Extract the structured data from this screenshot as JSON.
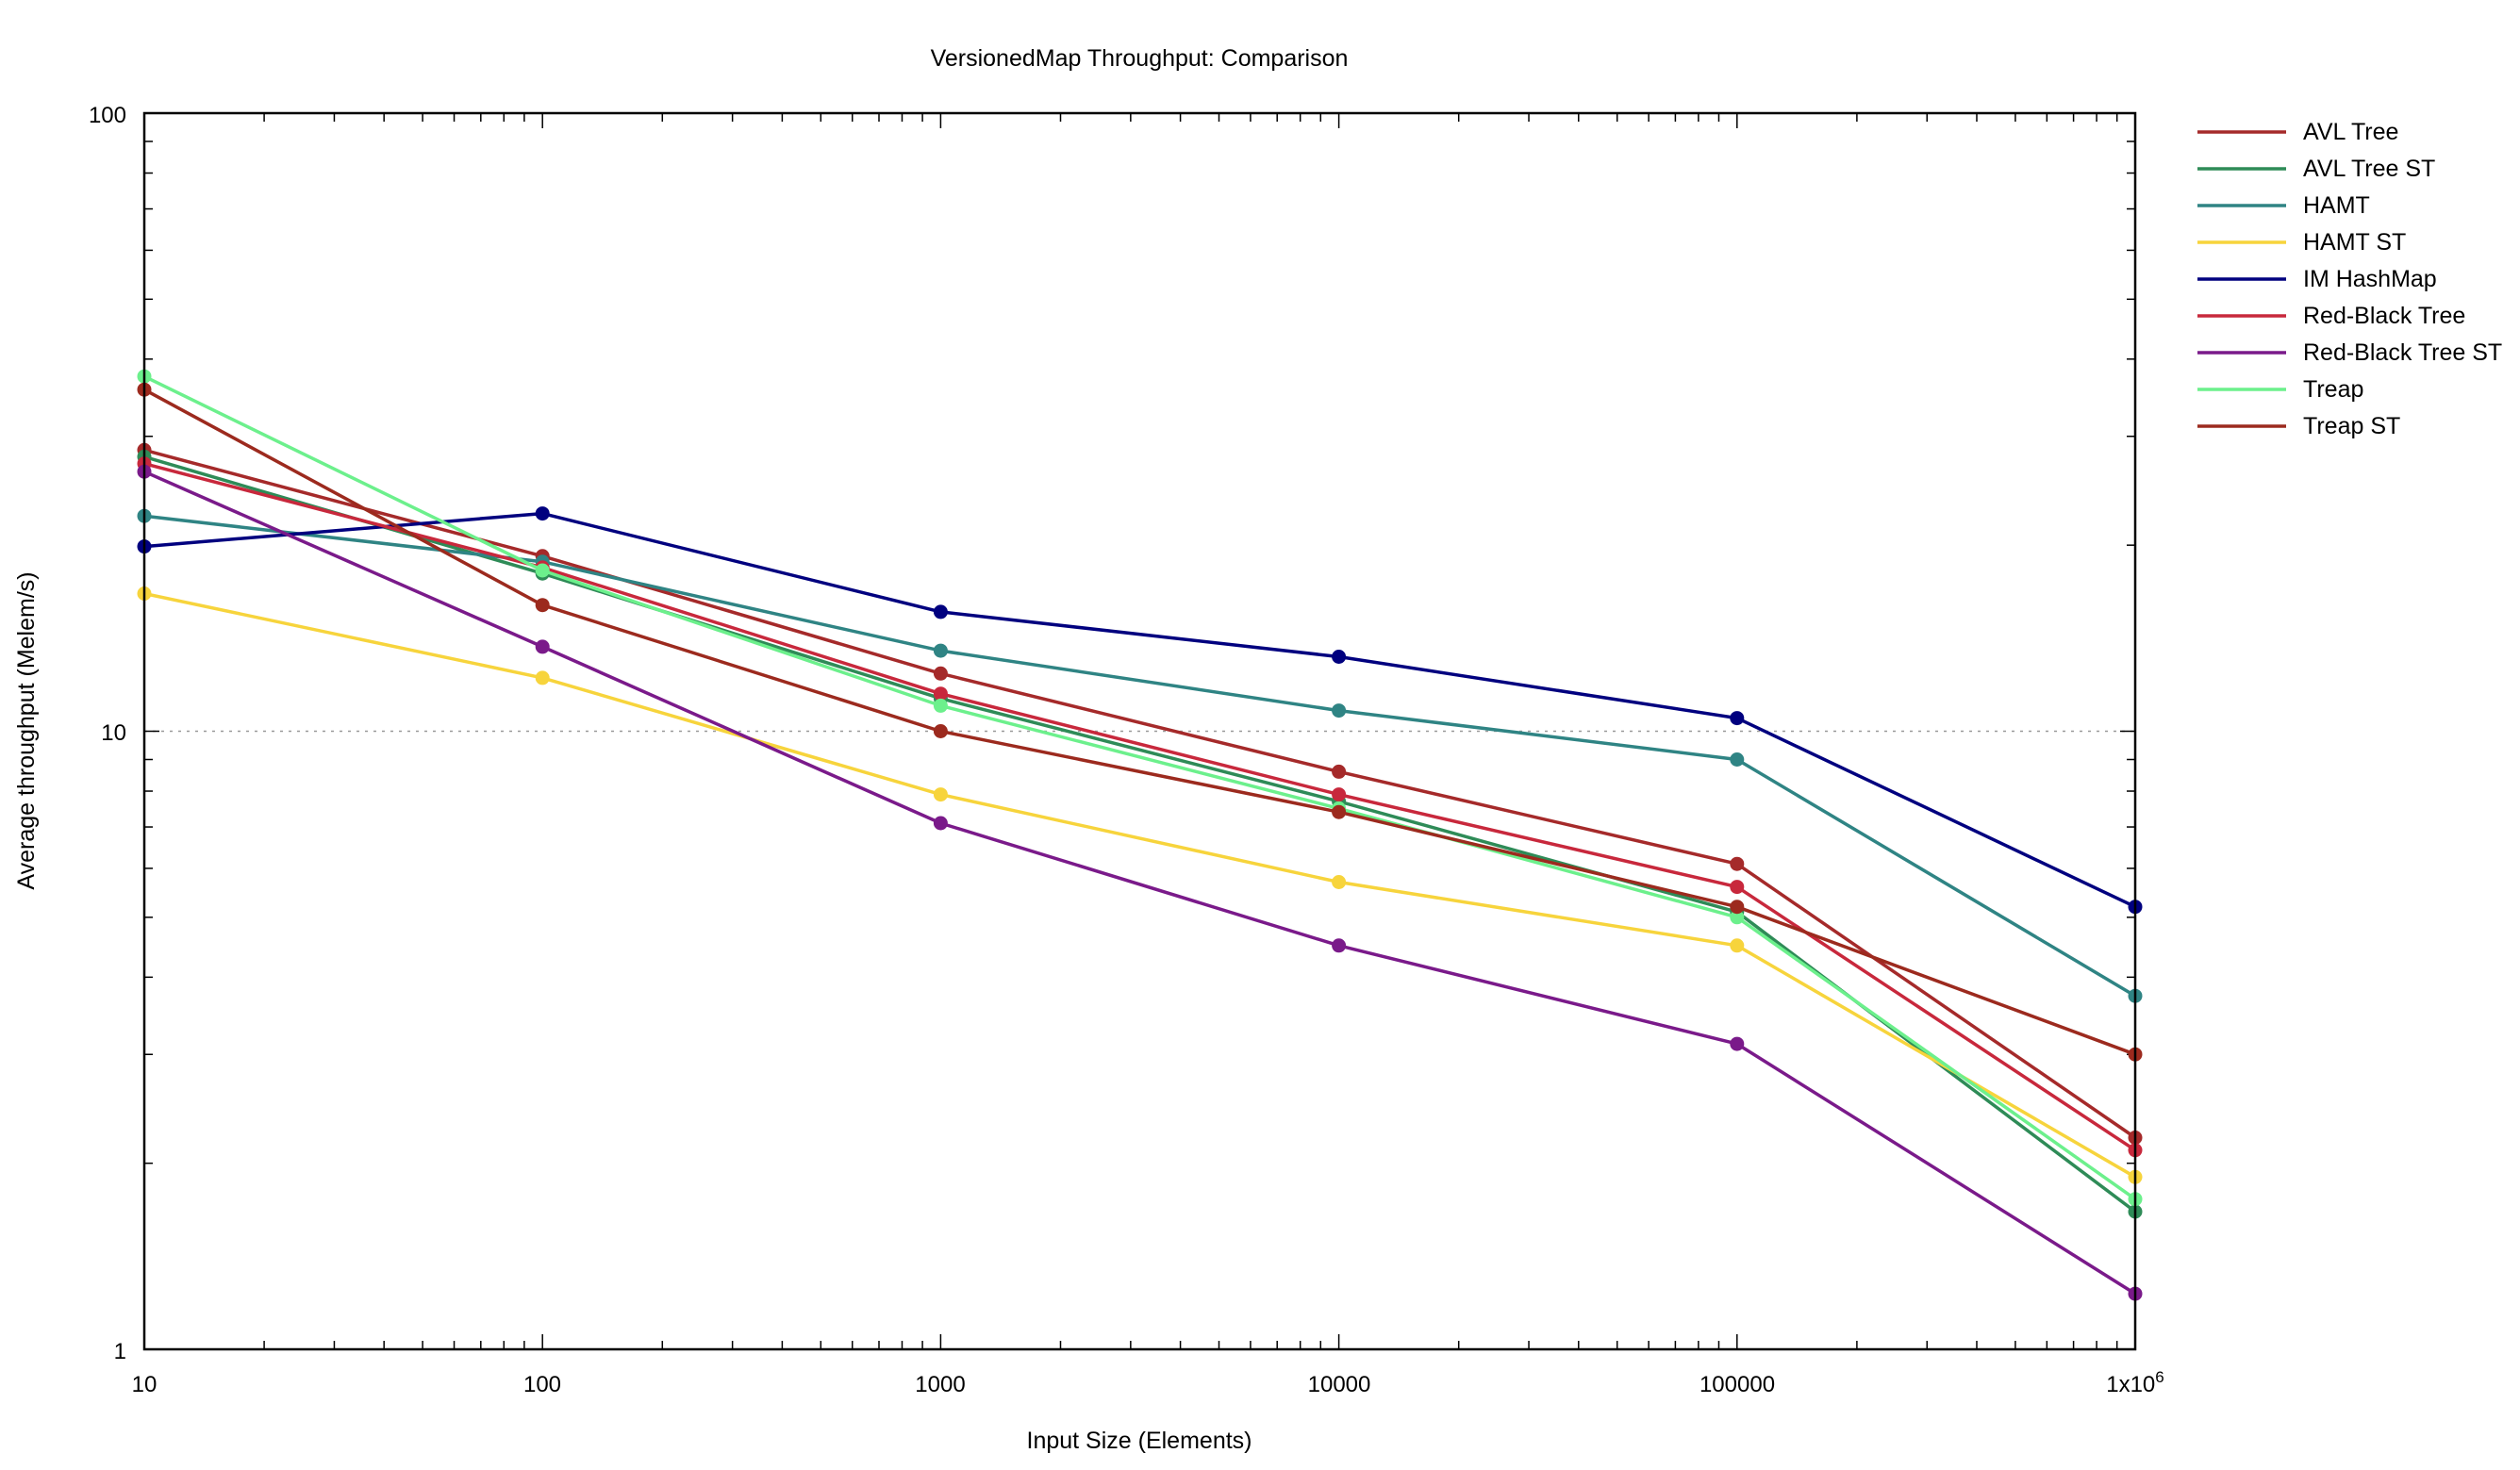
{
  "chart_data": {
    "type": "line",
    "title": "VersionedMap Throughput: Comparison",
    "xlabel": "Input Size (Elements)",
    "ylabel": "Average throughput (Melem/s)",
    "x_scale": "log",
    "y_scale": "log",
    "xlim": [
      10,
      1000000
    ],
    "ylim": [
      1,
      100
    ],
    "x": [
      10,
      100,
      1000,
      10000,
      100000,
      1000000
    ],
    "x_tick_labels": [
      "10",
      "100",
      "1000",
      "10000",
      "100000",
      "1x10",
      "6"
    ],
    "y_tick_labels": [
      "1",
      "10",
      "100"
    ],
    "grid": "dotted horizontal line at 10",
    "legend_position": "right",
    "series": [
      {
        "name": "AVL Tree",
        "color": "#a52a2a",
        "values": [
          28.5,
          19.2,
          12.4,
          8.6,
          6.1,
          2.2
        ]
      },
      {
        "name": "AVL Tree ST",
        "color": "#2e8b57",
        "values": [
          27.8,
          18.0,
          11.3,
          7.7,
          5.1,
          1.67
        ]
      },
      {
        "name": "HAMT",
        "color": "#2f8484",
        "values": [
          22.3,
          18.8,
          13.5,
          10.8,
          9.0,
          3.73
        ]
      },
      {
        "name": "HAMT ST",
        "color": "#f7d43c",
        "values": [
          16.7,
          12.2,
          7.9,
          5.7,
          4.5,
          1.9
        ]
      },
      {
        "name": "IM HashMap",
        "color": "#00007f",
        "values": [
          19.9,
          22.5,
          15.6,
          13.2,
          10.5,
          5.2
        ]
      },
      {
        "name": "Red-Black Tree",
        "color": "#c8283c",
        "values": [
          27.1,
          18.4,
          11.5,
          7.9,
          5.6,
          2.1
        ]
      },
      {
        "name": "Red-Black Tree ST",
        "color": "#7a1a8a",
        "values": [
          26.3,
          13.7,
          7.1,
          4.5,
          3.12,
          1.23
        ]
      },
      {
        "name": "Treap",
        "color": "#6cf08c",
        "values": [
          37.5,
          18.2,
          11.0,
          7.5,
          5.0,
          1.75
        ]
      },
      {
        "name": "Treap ST",
        "color": "#9c2a1e",
        "values": [
          35.7,
          16.0,
          10.0,
          7.4,
          5.2,
          3.0
        ]
      }
    ]
  }
}
